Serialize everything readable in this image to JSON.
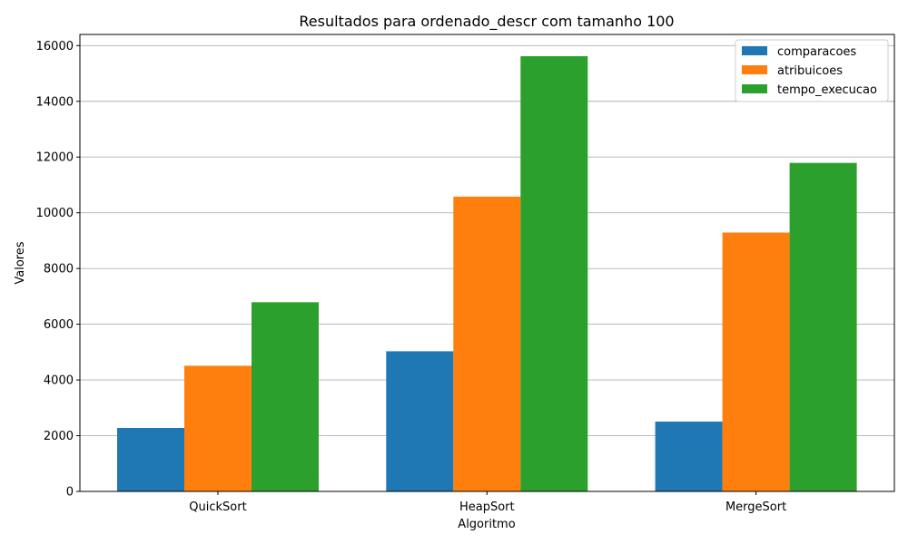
{
  "chart_data": {
    "type": "bar",
    "title": "Resultados para ordenado_descr com tamanho 100",
    "xlabel": "Algoritmo",
    "ylabel": "Valores",
    "categories": [
      "QuickSort",
      "HeapSort",
      "MergeSort"
    ],
    "series": [
      {
        "name": "comparacoes",
        "color": "#1f77b4",
        "values": [
          2278,
          5030,
          2505
        ]
      },
      {
        "name": "atribuicoes",
        "color": "#ff7f0e",
        "values": [
          4510,
          10580,
          9290
        ]
      },
      {
        "name": "tempo_execucao",
        "color": "#2ca02c",
        "values": [
          6790,
          15620,
          11790
        ]
      }
    ],
    "ylim": [
      0,
      16400
    ],
    "yticks": [
      0,
      2000,
      4000,
      6000,
      8000,
      10000,
      12000,
      14000,
      16000
    ],
    "ytick_labels": [
      "0",
      "2000",
      "4000",
      "6000",
      "8000",
      "10000",
      "12000",
      "14000",
      "16000"
    ],
    "grid": "horizontal",
    "legend_position": "top-right"
  }
}
